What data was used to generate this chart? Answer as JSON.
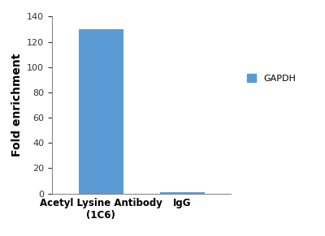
{
  "categories": [
    "Acetyl Lysine Antibody\n(1C6)",
    "IgG"
  ],
  "values": [
    130,
    1
  ],
  "bar_color": "#5b9bd5",
  "bar_width": 0.55,
  "ylabel": "Fold enrichment",
  "ylim": [
    0,
    140
  ],
  "yticks": [
    0,
    20,
    40,
    60,
    80,
    100,
    120,
    140
  ],
  "legend_label": "GAPDH",
  "legend_color": "#5b9bd5",
  "background_color": "#ffffff",
  "ylabel_fontsize": 10,
  "tick_fontsize": 8,
  "legend_fontsize": 8,
  "xlabel_fontsize": 8.5,
  "figsize": [
    4.0,
    2.91
  ],
  "dpi": 100
}
